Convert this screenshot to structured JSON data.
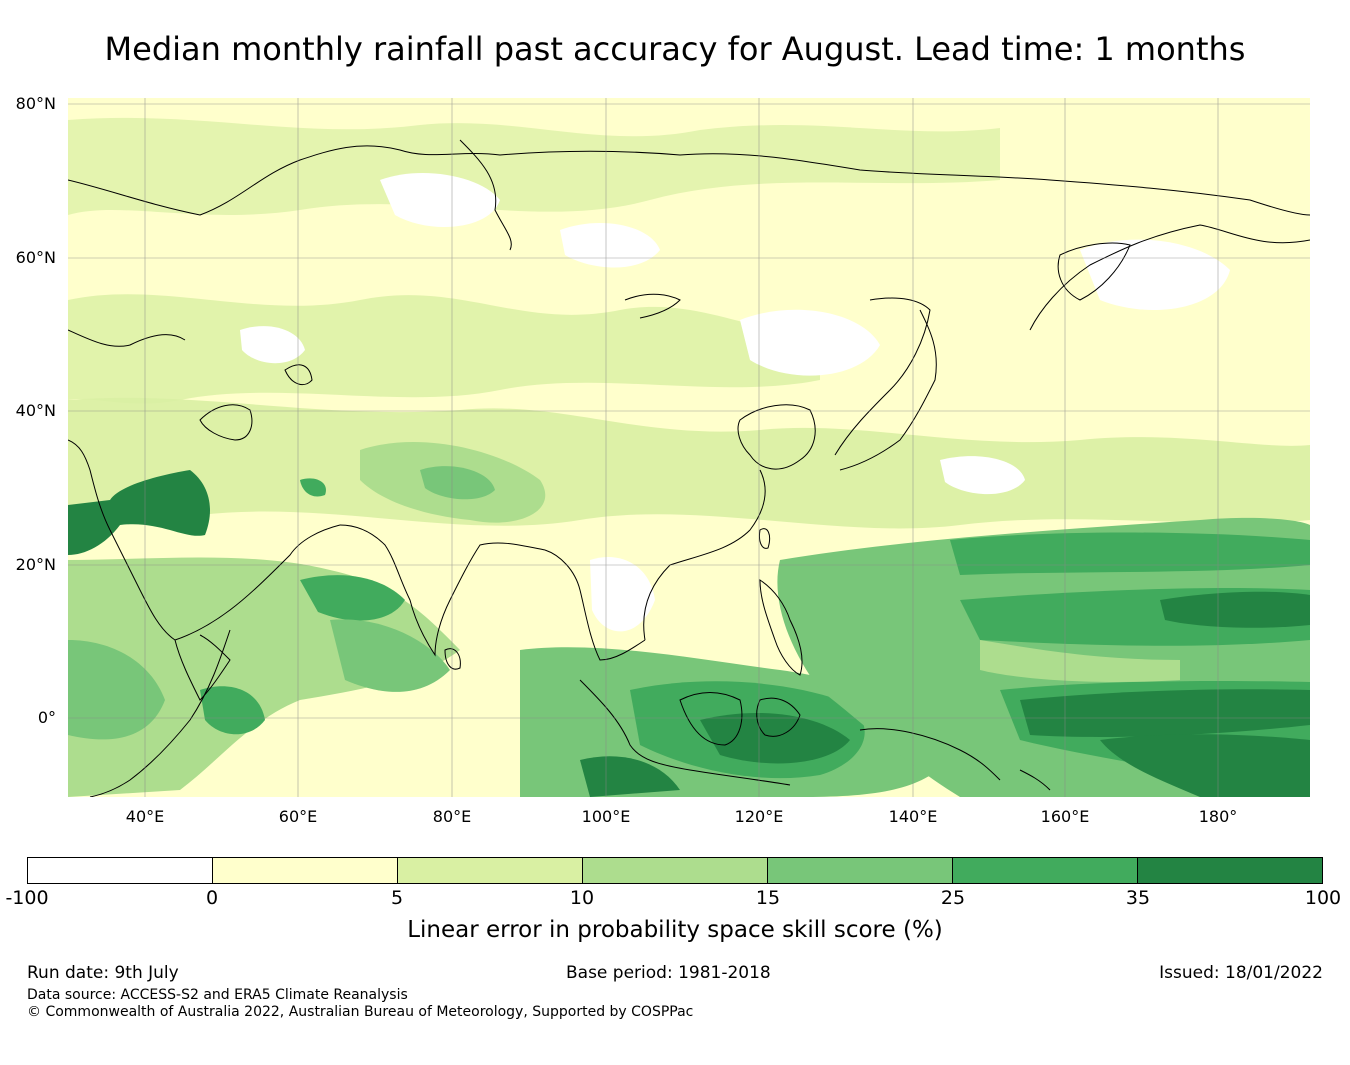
{
  "title": "Median monthly rainfall past accuracy for August. Lead time: 1 months",
  "map": {
    "lat_labels": [
      "80°N",
      "60°N",
      "40°N",
      "20°N",
      "0°"
    ],
    "lon_labels": [
      "40°E",
      "60°E",
      "80°E",
      "100°E",
      "120°E",
      "140°E",
      "160°E",
      "180°"
    ],
    "lon_range": [
      30,
      192
    ],
    "lat_range": [
      -10,
      81
    ],
    "grid_lines": true
  },
  "colorbar": {
    "ticks": [
      "-100",
      "0",
      "5",
      "10",
      "15",
      "25",
      "35",
      "100"
    ],
    "colors": [
      "#ffffff",
      "#ffffcc",
      "#d9f0a3",
      "#addd8e",
      "#78c679",
      "#41ab5d",
      "#238443"
    ],
    "label": "Linear error in probability space skill score (%)"
  },
  "footer": {
    "run_date": "Run date: 9th July",
    "base_period": "Base period: 1981-2018",
    "issued": "Issued: 18/01/2022",
    "data_source": "Data source: ACCESS-S2 and ERA5 Climate Reanalysis",
    "copyright": "© Commonwealth of Australia 2022, Australian Bureau of Meteorology, Supported by COSPPac"
  }
}
